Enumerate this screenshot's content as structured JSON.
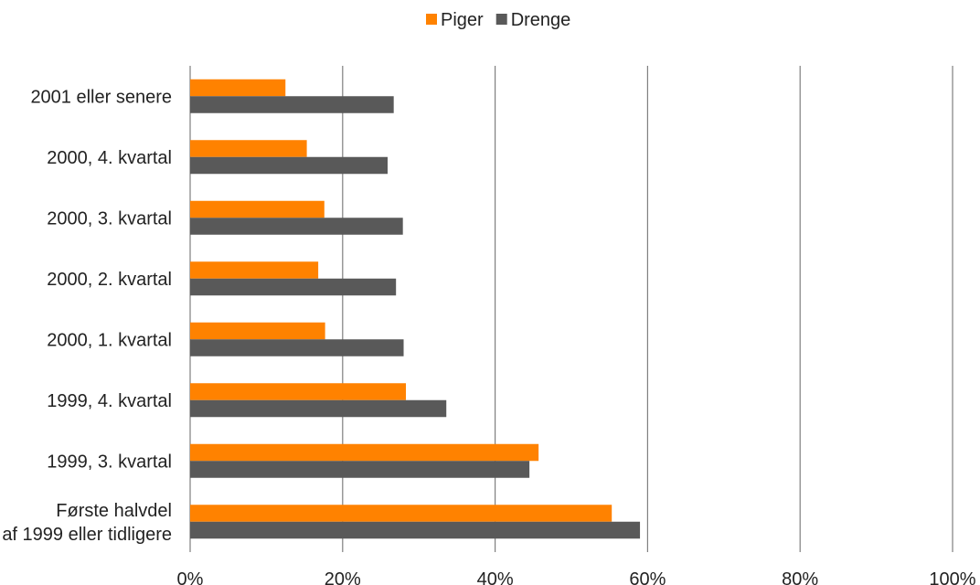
{
  "chart_data": {
    "type": "bar",
    "orientation": "horizontal",
    "categories": [
      "2001 eller senere",
      "2000, 4. kvartal",
      "2000, 3. kvartal",
      "2000, 2. kvartal",
      "2000, 1. kvartal",
      "1999, 4. kvartal",
      "1999, 3. kvartal",
      "Første halvdel af 1999 eller tidligere"
    ],
    "series": [
      {
        "name": "Piger",
        "color": "#ff8200",
        "values": [
          12.5,
          15.3,
          17.6,
          16.8,
          17.7,
          28.3,
          45.7,
          55.3
        ]
      },
      {
        "name": "Drenge",
        "color": "#595959",
        "values": [
          26.7,
          25.9,
          27.9,
          27.0,
          28.0,
          33.6,
          44.5,
          59.0
        ]
      }
    ],
    "xlim": [
      0,
      100
    ],
    "xticks": [
      "0%",
      "20%",
      "40%",
      "60%",
      "80%",
      "100%"
    ],
    "grid": true,
    "legend_position": "top-center"
  }
}
